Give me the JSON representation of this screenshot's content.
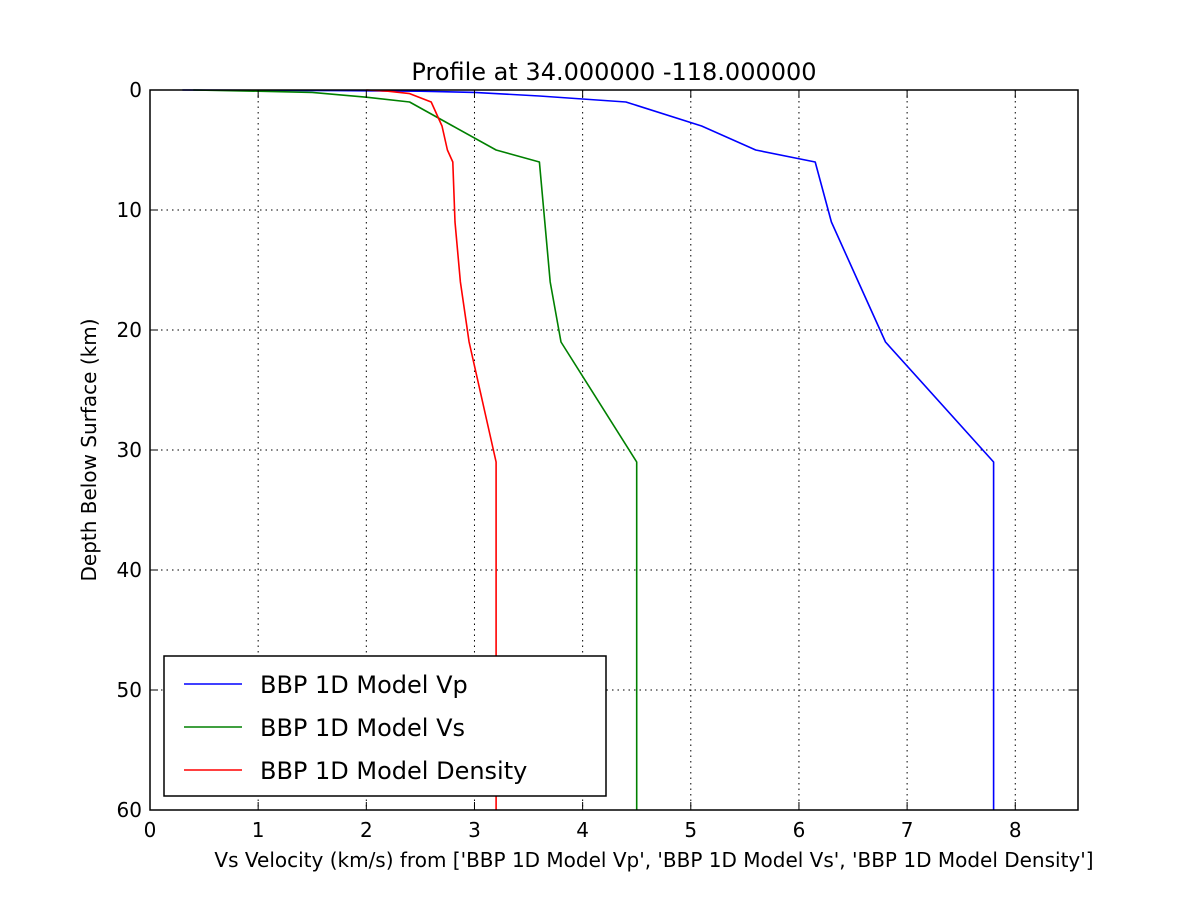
{
  "chart_data": {
    "type": "line",
    "title": "Profile at 34.000000 -118.000000",
    "xlabel": "Vs Velocity (km/s) from ['BBP 1D Model Vp', 'BBP 1D Model Vs', 'BBP 1D Model Density']",
    "ylabel": "Depth Below Surface (km)",
    "xlim": [
      0,
      8.58
    ],
    "ylim": [
      60,
      0
    ],
    "y_inverted": true,
    "xticks": [
      0,
      1,
      2,
      3,
      4,
      5,
      6,
      7,
      8
    ],
    "yticks": [
      0,
      10,
      20,
      30,
      40,
      50,
      60
    ],
    "xtick_labels": [
      "0",
      "1",
      "2",
      "3",
      "4",
      "5",
      "6",
      "7",
      "8"
    ],
    "ytick_labels": [
      "0",
      "10",
      "20",
      "30",
      "40",
      "50",
      "60"
    ],
    "grid": true,
    "grid_style": "dotted",
    "legend_position": "lower-left",
    "series": [
      {
        "name": "BBP 1D Model Vp",
        "color": "#0000ff",
        "x": [
          0.3,
          1.7,
          2.5,
          3.0,
          3.6,
          4.4,
          5.1,
          5.6,
          6.15,
          6.3,
          6.55,
          6.8,
          7.8,
          7.8
        ],
        "y": [
          0,
          0.05,
          0.1,
          0.2,
          0.5,
          1.0,
          3.0,
          5.0,
          6.0,
          11.0,
          16.0,
          21.0,
          31.0,
          60.0
        ]
      },
      {
        "name": "BBP 1D Model Vs",
        "color": "#008000",
        "x": [
          0.4,
          1.0,
          1.5,
          2.0,
          2.4,
          2.8,
          3.2,
          3.6,
          3.65,
          3.7,
          3.8,
          4.5,
          4.5
        ],
        "y": [
          0,
          0.1,
          0.2,
          0.6,
          1.0,
          3.0,
          5.0,
          6.0,
          11.0,
          16.0,
          21.0,
          31.0,
          60.0
        ]
      },
      {
        "name": "BBP 1D Model Density",
        "color": "#ff0000",
        "x": [
          2.0,
          2.2,
          2.4,
          2.6,
          2.7,
          2.75,
          2.8,
          2.82,
          2.87,
          2.95,
          3.2,
          3.2
        ],
        "y": [
          0,
          0.1,
          0.3,
          1.0,
          3.0,
          5.0,
          6.0,
          11.0,
          16.0,
          21.0,
          31.0,
          60.0
        ]
      }
    ]
  }
}
